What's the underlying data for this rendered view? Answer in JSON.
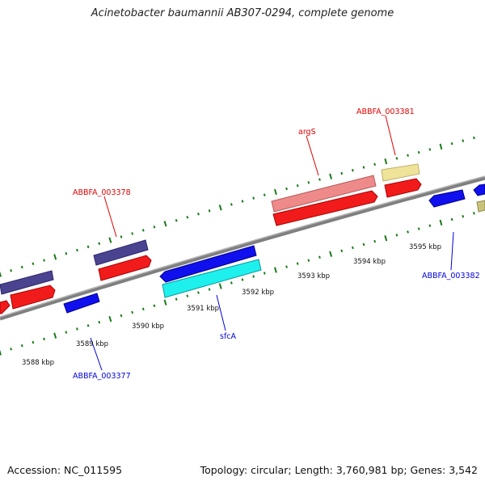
{
  "title": "Acinetobacter baumannii AB307-0294, complete genome",
  "footer": {
    "accession": "Accession: NC_011595",
    "summary": "Topology: circular; Length: 3,760,981 bp; Genes: 3,542"
  },
  "colors": {
    "forward_label": "#e00000",
    "reverse_label": "#0000dd",
    "backbone": "#888888",
    "tick": "#1a7a1a"
  },
  "ruler_labels": [
    "3588 kbp",
    "3589 kbp",
    "3590 kbp",
    "3591 kbp",
    "3592 kbp",
    "3593 kbp",
    "3594 kbp",
    "3595 kbp"
  ],
  "gene_labels": [
    {
      "text": "ABBFA_003378",
      "strand": "forward"
    },
    {
      "text": "argS",
      "strand": "forward"
    },
    {
      "text": "ABBFA_003381",
      "strand": "forward"
    },
    {
      "text": "ABBFA_003377",
      "strand": "reverse"
    },
    {
      "text": "sfcA",
      "strand": "reverse"
    },
    {
      "text": "ABBFA_003382",
      "strand": "reverse"
    }
  ]
}
